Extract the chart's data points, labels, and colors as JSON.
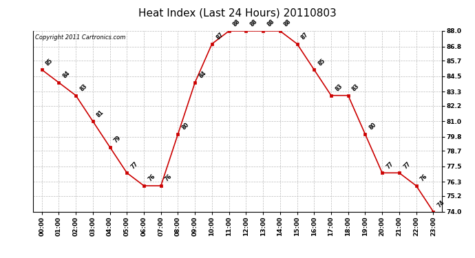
{
  "title": "Heat Index (Last 24 Hours) 20110803",
  "copyright": "Copyright 2011 Cartronics.com",
  "hours": [
    "00:00",
    "01:00",
    "02:00",
    "03:00",
    "04:00",
    "05:00",
    "06:00",
    "07:00",
    "08:00",
    "09:00",
    "10:00",
    "11:00",
    "12:00",
    "13:00",
    "14:00",
    "15:00",
    "16:00",
    "17:00",
    "18:00",
    "19:00",
    "20:00",
    "21:00",
    "22:00",
    "23:00"
  ],
  "values": [
    85,
    84,
    83,
    81,
    79,
    77,
    76,
    76,
    80,
    84,
    87,
    88,
    88,
    88,
    88,
    87,
    85,
    83,
    83,
    80,
    77,
    77,
    76,
    74
  ],
  "line_color": "#cc0000",
  "marker_color": "#cc0000",
  "background_color": "#ffffff",
  "grid_color": "#bbbbbb",
  "title_fontsize": 11,
  "copyright_fontsize": 6,
  "label_fontsize": 6.5,
  "annotation_fontsize": 5.5,
  "ylim_min": 74.0,
  "ylim_max": 88.0,
  "ytick_values": [
    74.0,
    75.2,
    76.3,
    77.5,
    78.7,
    79.8,
    81.0,
    82.2,
    83.3,
    84.5,
    85.7,
    86.8,
    88.0
  ],
  "ytick_labels": [
    "74.0",
    "75.2",
    "76.3",
    "77.5",
    "78.7",
    "79.8",
    "81.0",
    "82.2",
    "83.3",
    "84.5",
    "85.7",
    "86.8",
    "88.0"
  ]
}
